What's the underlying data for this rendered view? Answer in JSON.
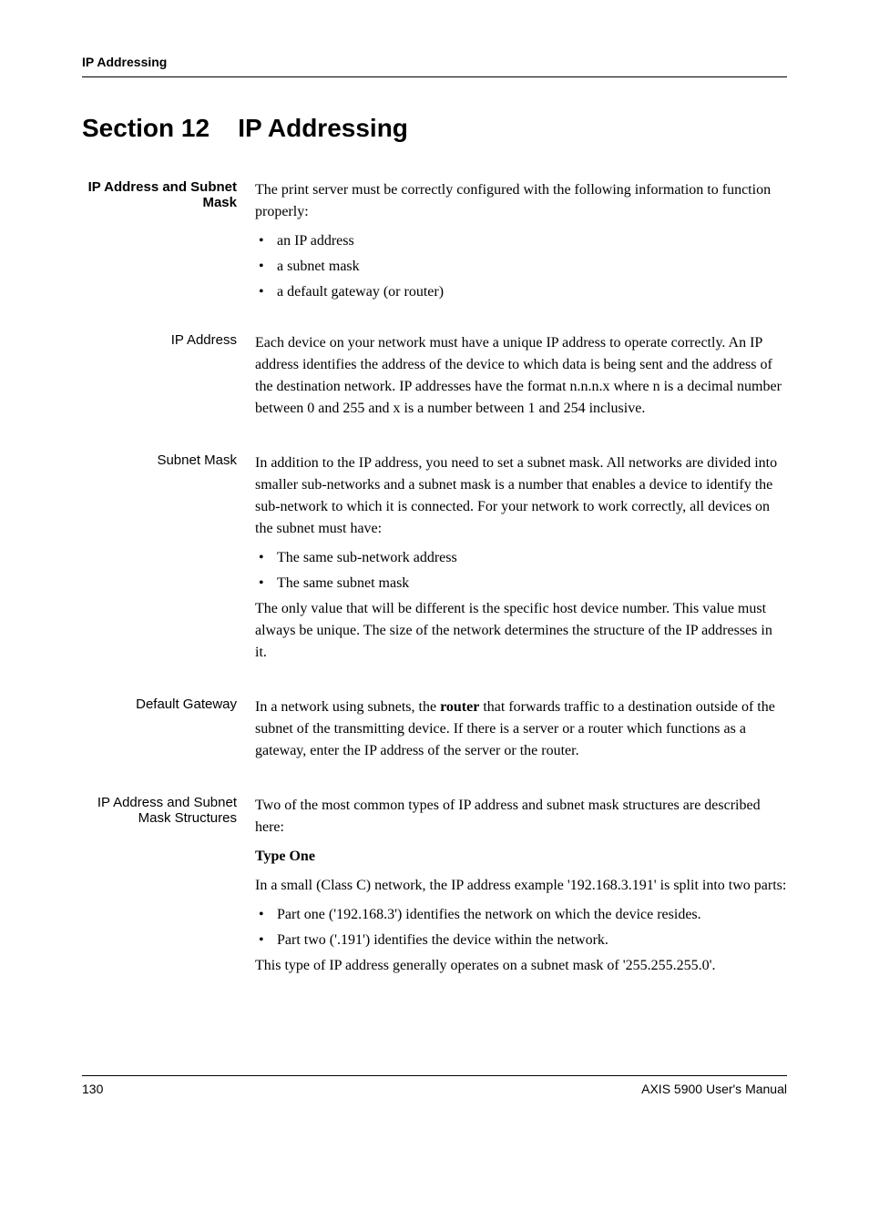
{
  "header": {
    "title": "IP Addressing"
  },
  "section": {
    "number": "Section 12",
    "name": "IP Addressing"
  },
  "blocks": [
    {
      "label": "IP Address and Subnet Mask",
      "bold": true,
      "paragraphs": [
        "The print server must be correctly configured with the following information to function properly:"
      ],
      "bullets": [
        "an IP address",
        "a subnet mask",
        "a default gateway (or router)"
      ]
    },
    {
      "label": "IP Address",
      "bold": false,
      "paragraphs": [
        "Each device on your network must have a unique IP address to operate correctly. An IP address identifies the address of the device to which data is being sent and the address of the destination network. IP addresses have the format n.n.n.x where n is a decimal number between 0 and 255 and x is a number between 1 and 254 inclusive."
      ]
    },
    {
      "label": "Subnet Mask",
      "bold": false,
      "paragraphs": [
        "In addition to the IP address, you need to set a subnet mask. All networks are divided into smaller sub-networks and a subnet mask is a number that enables a device to identify the sub-network to which it is connected. For your network to work correctly, all devices on the subnet must have:"
      ],
      "bullets": [
        "The same sub-network address",
        "The same subnet mask"
      ],
      "after_bullets": [
        "The only value that will be different is the specific host device number. This value must always be unique. The size of the network determines the structure of the IP addresses in it."
      ]
    },
    {
      "label": "Default Gateway",
      "bold": false,
      "html_paragraphs": [
        "In a network using subnets, the <span class=\"bold-inline\">router</span> that forwards traffic to a destination outside of the subnet of the transmitting device. If there is a server or a router which functions as a gateway, enter the IP address of the server or the router."
      ]
    },
    {
      "label": "IP Address and Subnet Mask Structures",
      "bold": false,
      "paragraphs": [
        "Two of the most common types of IP address and subnet mask structures are described here:"
      ],
      "subheading": "Type One",
      "after_subheading": [
        "In a small (Class C) network, the IP address example '192.168.3.191' is split into two parts:"
      ],
      "bullets_after": [
        "Part one ('192.168.3') identifies the network on which the device resides.",
        "Part two ('.191') identifies the device within the network."
      ],
      "final_para": [
        "This type of IP address generally operates on a subnet mask of '255.255.255.0'."
      ]
    }
  ],
  "footer": {
    "page": "130",
    "manual": "AXIS 5900 User's Manual"
  }
}
